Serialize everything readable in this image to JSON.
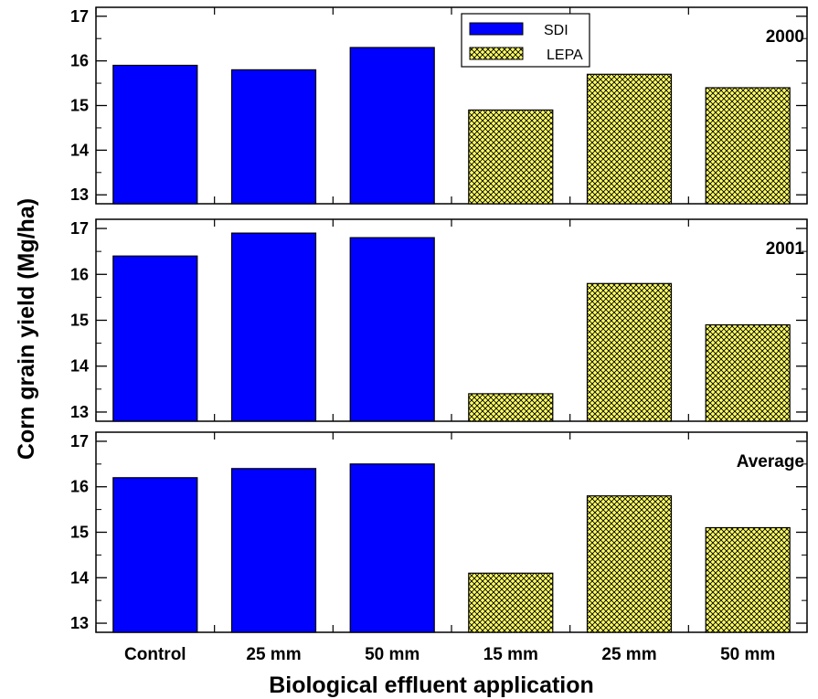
{
  "chart_data": {
    "type": "bar",
    "xlabel": "Biological effluent application",
    "ylabel": "Corn grain yield (Mg/ha)",
    "categories": [
      "Control",
      "25 mm",
      "50 mm",
      "15 mm",
      "25 mm",
      "50 mm"
    ],
    "category_series": [
      "SDI",
      "SDI",
      "SDI",
      "LEPA",
      "LEPA",
      "LEPA"
    ],
    "legend": [
      {
        "name": "SDI",
        "color": "#0000ff",
        "pattern": "solid"
      },
      {
        "name": "LEPA",
        "color": "#ffff66",
        "pattern": "crosshatch"
      }
    ],
    "legend_position": "top, inside first panel",
    "ylim": [
      12.8,
      17.2
    ],
    "yticks": [
      13,
      14,
      15,
      16,
      17
    ],
    "panels": [
      {
        "label": "2000",
        "values": [
          15.9,
          15.8,
          16.3,
          14.9,
          15.7,
          15.4
        ]
      },
      {
        "label": "2001",
        "values": [
          16.4,
          16.9,
          16.8,
          13.4,
          15.8,
          14.9
        ]
      },
      {
        "label": "Average",
        "values": [
          16.2,
          16.4,
          16.5,
          14.1,
          15.8,
          15.1
        ]
      }
    ],
    "grid": false
  },
  "colors": {
    "sdi": "#0000ff",
    "lepa": "#ffff66",
    "hatch": "#000000",
    "axis": "#000000"
  }
}
